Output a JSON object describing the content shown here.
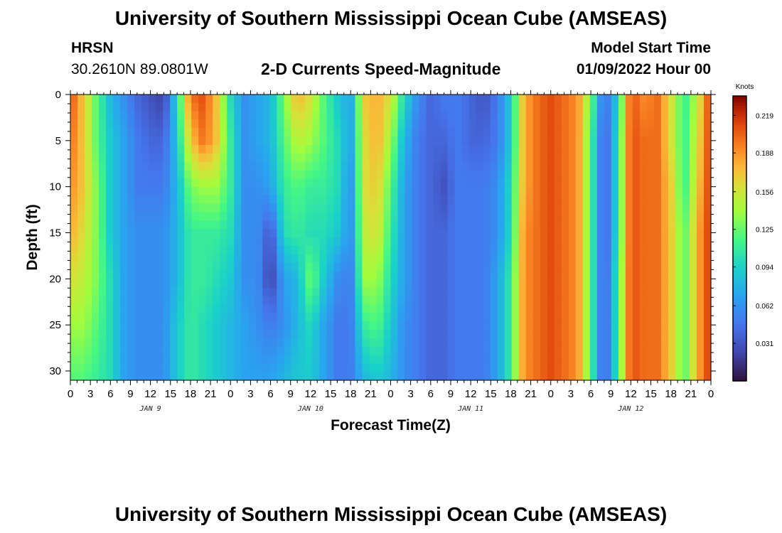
{
  "header": {
    "title": "University of Southern Mississippi Ocean Cube (AMSEAS)",
    "station": "HRSN",
    "coords": "30.2610N  89.0801W",
    "plot_title": "2-D Currents Speed-Magnitude",
    "model_start_label": "Model Start Time",
    "model_start_value": "01/09/2022 Hour 00"
  },
  "footer": {
    "title": "University of Southern Mississippi Ocean Cube (AMSEAS)"
  },
  "chart_data": {
    "type": "heatmap",
    "title": "2-D Currents Speed-Magnitude",
    "xlabel": "Forecast Time(Z)",
    "ylabel": "Depth (ft)",
    "x_ticks": [
      "0",
      "3",
      "6",
      "9",
      "12",
      "15",
      "18",
      "21",
      "0",
      "3",
      "6",
      "9",
      "12",
      "15",
      "18",
      "21",
      "0",
      "3",
      "6",
      "9",
      "12",
      "15",
      "18",
      "21",
      "0",
      "3",
      "6",
      "9",
      "12",
      "15",
      "18",
      "21",
      "0"
    ],
    "x_range_hours": [
      0,
      96
    ],
    "day_labels": [
      {
        "label": "JAN 9",
        "hour": 12
      },
      {
        "label": "JAN 10",
        "hour": 36
      },
      {
        "label": "JAN 11",
        "hour": 60
      },
      {
        "label": "JAN 12",
        "hour": 84
      }
    ],
    "y_ticks": [
      0,
      5,
      10,
      15,
      20,
      25,
      30
    ],
    "ylim": [
      0,
      31
    ],
    "y_inverted": true,
    "colorbar": {
      "label": "Knots",
      "range": [
        0.0,
        0.235
      ],
      "ticks": [
        "0.219",
        "0.188",
        "0.156",
        "0.125",
        "0.094",
        "0.062",
        "0.031"
      ],
      "tick_values": [
        0.219,
        0.188,
        0.156,
        0.125,
        0.094,
        0.062,
        0.031
      ]
    },
    "depths": [
      0,
      5,
      10,
      15,
      20,
      25,
      31
    ],
    "hours": [
      0,
      2,
      4,
      6,
      8,
      10,
      12,
      14,
      16,
      18,
      20,
      22,
      24,
      26,
      28,
      30,
      32,
      34,
      36,
      38,
      40,
      42,
      44,
      46,
      48,
      50,
      52,
      54,
      56,
      58,
      60,
      62,
      64,
      66,
      68,
      70,
      72,
      74,
      76,
      78,
      80,
      82,
      84,
      86,
      88,
      90,
      92,
      94,
      96
    ],
    "values": [
      [
        0.21,
        0.17,
        0.12,
        0.08,
        0.06,
        0.04,
        0.03,
        0.02,
        0.1,
        0.2,
        0.21,
        0.17,
        0.1,
        0.06,
        0.07,
        0.08,
        0.13,
        0.18,
        0.16,
        0.12,
        0.09,
        0.07,
        0.17,
        0.18,
        0.16,
        0.1,
        0.06,
        0.04,
        0.05,
        0.05,
        0.04,
        0.03,
        0.05,
        0.09,
        0.18,
        0.2,
        0.21,
        0.2,
        0.19,
        0.13,
        0.04,
        0.09,
        0.21,
        0.19,
        0.2,
        0.16,
        0.11,
        0.15,
        0.22
      ],
      [
        0.2,
        0.17,
        0.12,
        0.09,
        0.07,
        0.05,
        0.04,
        0.04,
        0.09,
        0.17,
        0.2,
        0.17,
        0.11,
        0.06,
        0.07,
        0.08,
        0.12,
        0.15,
        0.14,
        0.12,
        0.1,
        0.07,
        0.16,
        0.18,
        0.14,
        0.08,
        0.05,
        0.04,
        0.04,
        0.05,
        0.04,
        0.04,
        0.05,
        0.09,
        0.18,
        0.2,
        0.21,
        0.2,
        0.19,
        0.12,
        0.03,
        0.1,
        0.21,
        0.2,
        0.2,
        0.16,
        0.11,
        0.16,
        0.22
      ],
      [
        0.19,
        0.17,
        0.13,
        0.09,
        0.07,
        0.05,
        0.05,
        0.05,
        0.08,
        0.13,
        0.14,
        0.14,
        0.11,
        0.06,
        0.06,
        0.07,
        0.11,
        0.12,
        0.11,
        0.11,
        0.1,
        0.06,
        0.16,
        0.17,
        0.12,
        0.07,
        0.05,
        0.04,
        0.03,
        0.05,
        0.05,
        0.05,
        0.06,
        0.1,
        0.18,
        0.2,
        0.21,
        0.2,
        0.19,
        0.12,
        0.03,
        0.1,
        0.21,
        0.2,
        0.2,
        0.17,
        0.11,
        0.17,
        0.22
      ],
      [
        0.18,
        0.16,
        0.13,
        0.09,
        0.07,
        0.06,
        0.06,
        0.06,
        0.08,
        0.11,
        0.11,
        0.11,
        0.1,
        0.06,
        0.06,
        0.03,
        0.1,
        0.11,
        0.1,
        0.1,
        0.09,
        0.06,
        0.15,
        0.16,
        0.11,
        0.07,
        0.05,
        0.04,
        0.04,
        0.05,
        0.05,
        0.05,
        0.06,
        0.1,
        0.19,
        0.2,
        0.21,
        0.2,
        0.19,
        0.12,
        0.03,
        0.1,
        0.21,
        0.2,
        0.2,
        0.17,
        0.12,
        0.18,
        0.22
      ],
      [
        0.16,
        0.15,
        0.13,
        0.1,
        0.07,
        0.06,
        0.06,
        0.06,
        0.08,
        0.11,
        0.11,
        0.1,
        0.09,
        0.06,
        0.06,
        0.02,
        0.07,
        0.08,
        0.13,
        0.09,
        0.06,
        0.05,
        0.14,
        0.14,
        0.1,
        0.07,
        0.05,
        0.04,
        0.04,
        0.05,
        0.05,
        0.05,
        0.07,
        0.11,
        0.19,
        0.2,
        0.21,
        0.2,
        0.19,
        0.12,
        0.03,
        0.11,
        0.21,
        0.2,
        0.2,
        0.17,
        0.12,
        0.18,
        0.22
      ],
      [
        0.14,
        0.14,
        0.12,
        0.1,
        0.07,
        0.06,
        0.06,
        0.06,
        0.09,
        0.11,
        0.1,
        0.09,
        0.08,
        0.07,
        0.06,
        0.05,
        0.06,
        0.08,
        0.1,
        0.07,
        0.05,
        0.05,
        0.11,
        0.12,
        0.09,
        0.06,
        0.05,
        0.04,
        0.04,
        0.05,
        0.05,
        0.05,
        0.07,
        0.11,
        0.19,
        0.2,
        0.21,
        0.2,
        0.19,
        0.12,
        0.03,
        0.11,
        0.21,
        0.2,
        0.2,
        0.17,
        0.12,
        0.18,
        0.22
      ],
      [
        0.12,
        0.12,
        0.11,
        0.1,
        0.07,
        0.06,
        0.06,
        0.06,
        0.09,
        0.11,
        0.1,
        0.09,
        0.08,
        0.07,
        0.07,
        0.07,
        0.08,
        0.09,
        0.09,
        0.07,
        0.05,
        0.05,
        0.08,
        0.09,
        0.08,
        0.06,
        0.05,
        0.04,
        0.04,
        0.05,
        0.05,
        0.05,
        0.07,
        0.11,
        0.19,
        0.2,
        0.21,
        0.2,
        0.19,
        0.12,
        0.03,
        0.11,
        0.21,
        0.2,
        0.2,
        0.17,
        0.12,
        0.18,
        0.22
      ]
    ]
  }
}
